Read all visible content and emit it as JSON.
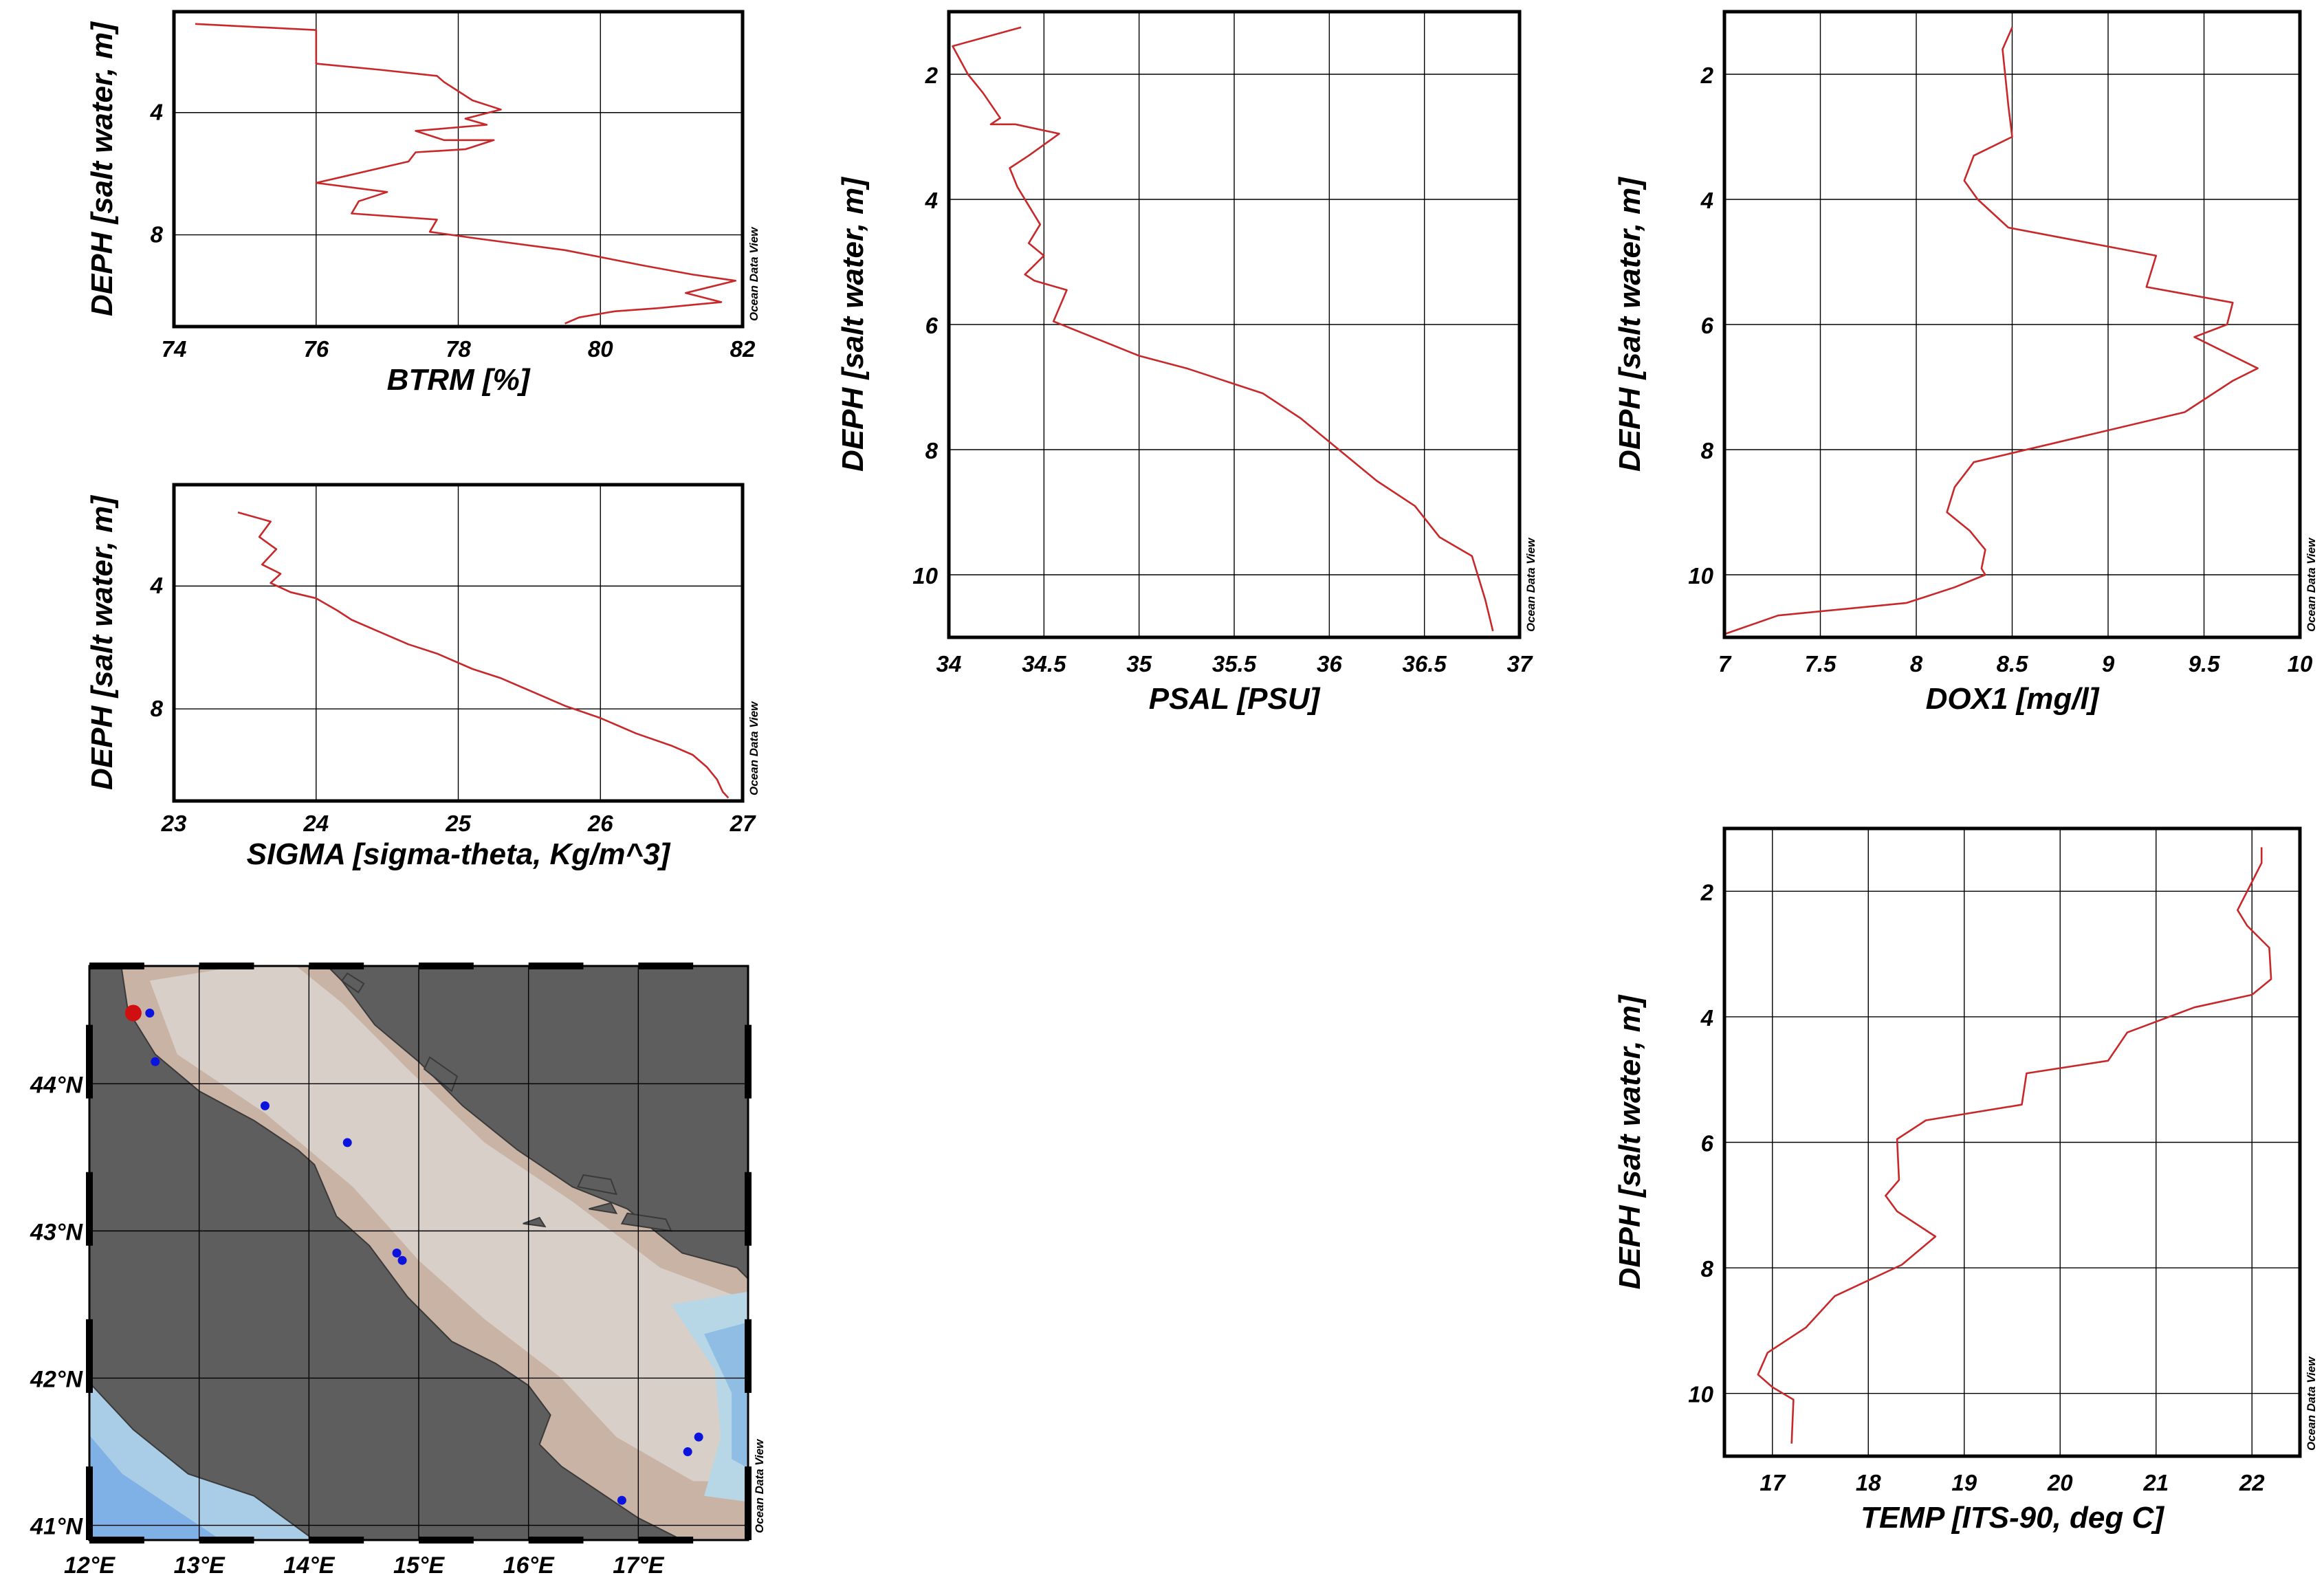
{
  "watermark": "Ocean Data View",
  "colors": {
    "profile": "#c8282a",
    "station": "#0a14dc",
    "selected_station": "#d01010",
    "land": "#5e5e5e",
    "sea_shallow": "#d8cfc8",
    "sea_mid": "#c9b3a4",
    "sea_deep": "#8fbde4"
  },
  "chart_data": [
    {
      "id": "btrm",
      "type": "line",
      "xlabel": "BTRM [%]",
      "ylabel": "DEPH [salt water, m]",
      "xlim": [
        74,
        82
      ],
      "ylim": [
        11,
        0.7
      ],
      "y_inverted": true,
      "xticks": [
        "74",
        "76",
        "78",
        "80",
        "82"
      ],
      "yticks": [
        "4",
        "8"
      ],
      "x": [
        79.5,
        79.7,
        80.2,
        80.8,
        81.7,
        81.2,
        81.9,
        81.3,
        80.6,
        79.5,
        78.2,
        77.6,
        77.7,
        76.5,
        76.6,
        77.0,
        76.0,
        77.3,
        77.4,
        78.1,
        78.5,
        77.8,
        77.4,
        78.4,
        78.1,
        78.6,
        78.2,
        77.8,
        77.7,
        76.9,
        76.0,
        76.0,
        74.3
      ],
      "y": [
        10.9,
        10.7,
        10.5,
        10.4,
        10.2,
        9.9,
        9.5,
        9.3,
        9.0,
        8.5,
        8.1,
        7.9,
        7.5,
        7.3,
        6.9,
        6.6,
        6.3,
        5.6,
        5.3,
        5.2,
        4.9,
        4.9,
        4.6,
        4.4,
        4.2,
        3.9,
        3.6,
        3.0,
        2.8,
        2.6,
        2.4,
        1.3,
        1.1
      ]
    },
    {
      "id": "sigma",
      "type": "line",
      "xlabel": "SIGMA [sigma-theta, Kg/m^3]",
      "ylabel": "DEPH [salt water, m]",
      "xlim": [
        23,
        27
      ],
      "ylim": [
        11,
        0.7
      ],
      "y_inverted": true,
      "xticks": [
        "23",
        "24",
        "25",
        "26",
        "27"
      ],
      "yticks": [
        "4",
        "8"
      ],
      "x": [
        23.45,
        23.68,
        23.6,
        23.72,
        23.62,
        23.75,
        23.68,
        23.82,
        24.0,
        24.15,
        24.25,
        24.45,
        24.65,
        24.85,
        25.1,
        25.3,
        25.55,
        25.75,
        26.0,
        26.25,
        26.5,
        26.65,
        26.75,
        26.82,
        26.86,
        26.9
      ],
      "y": [
        1.6,
        1.9,
        2.4,
        2.8,
        3.3,
        3.6,
        3.9,
        4.2,
        4.4,
        4.8,
        5.1,
        5.5,
        5.9,
        6.2,
        6.7,
        7.0,
        7.5,
        7.9,
        8.3,
        8.8,
        9.2,
        9.5,
        9.9,
        10.3,
        10.7,
        10.9
      ]
    },
    {
      "id": "psal",
      "type": "line",
      "xlabel": "PSAL [PSU]",
      "ylabel": "DEPH [salt water, m]",
      "xlim": [
        34,
        37
      ],
      "ylim": [
        11,
        1
      ],
      "y_inverted": true,
      "xticks": [
        "34",
        "34.5",
        "35",
        "35.5",
        "36",
        "36.5",
        "37"
      ],
      "yticks": [
        "2",
        "4",
        "6",
        "8",
        "10"
      ],
      "x": [
        34.38,
        34.02,
        34.1,
        34.18,
        34.27,
        34.22,
        34.35,
        34.58,
        34.42,
        34.32,
        34.36,
        34.48,
        34.42,
        34.5,
        34.4,
        34.45,
        34.62,
        34.55,
        35.0,
        35.25,
        35.65,
        35.85,
        36.05,
        36.25,
        36.45,
        36.58,
        36.75,
        36.82,
        36.86
      ],
      "y": [
        1.25,
        1.55,
        2.0,
        2.3,
        2.7,
        2.8,
        2.8,
        2.95,
        3.3,
        3.5,
        3.8,
        4.4,
        4.7,
        4.9,
        5.2,
        5.3,
        5.45,
        5.95,
        6.5,
        6.7,
        7.1,
        7.5,
        8.0,
        8.5,
        8.9,
        9.4,
        9.7,
        10.4,
        10.9
      ]
    },
    {
      "id": "dox1",
      "type": "line",
      "xlabel": "DOX1 [mg/l]",
      "ylabel": "DEPH [salt water, m]",
      "xlim": [
        7,
        10
      ],
      "ylim": [
        11,
        1
      ],
      "y_inverted": true,
      "xticks": [
        "7",
        "7.5",
        "8",
        "8.5",
        "9",
        "9.5",
        "10"
      ],
      "yticks": [
        "2",
        "4",
        "6",
        "8",
        "10"
      ],
      "x": [
        8.5,
        8.45,
        8.47,
        8.48,
        8.5,
        8.3,
        8.25,
        8.32,
        8.48,
        9.25,
        9.2,
        9.65,
        9.62,
        9.45,
        9.78,
        9.65,
        9.4,
        8.85,
        8.3,
        8.2,
        8.16,
        8.28,
        8.36,
        8.34,
        8.36,
        8.2,
        7.95,
        7.28,
        7.0
      ],
      "y": [
        1.25,
        1.6,
        2.2,
        2.5,
        3.0,
        3.3,
        3.7,
        4.0,
        4.45,
        4.9,
        5.4,
        5.65,
        6.0,
        6.2,
        6.7,
        6.9,
        7.4,
        7.8,
        8.2,
        8.6,
        9.0,
        9.3,
        9.6,
        9.9,
        10.0,
        10.2,
        10.45,
        10.65,
        10.95
      ]
    },
    {
      "id": "temp",
      "type": "line",
      "xlabel": "TEMP [ITS-90, deg C]",
      "ylabel": "DEPH [salt water, m]",
      "xlim": [
        16.5,
        22.5
      ],
      "ylim": [
        11,
        1
      ],
      "y_inverted": true,
      "xticks": [
        "17",
        "18",
        "19",
        "20",
        "21",
        "22"
      ],
      "yticks": [
        "2",
        "4",
        "6",
        "8",
        "10"
      ],
      "x": [
        22.1,
        22.1,
        22.0,
        21.85,
        21.95,
        22.18,
        22.2,
        22.0,
        21.4,
        20.7,
        20.5,
        19.65,
        19.6,
        18.6,
        18.3,
        18.32,
        18.18,
        18.3,
        18.7,
        18.35,
        17.65,
        17.35,
        16.95,
        16.85,
        17.0,
        17.22,
        17.2
      ],
      "y": [
        1.3,
        1.55,
        1.85,
        2.3,
        2.55,
        2.9,
        3.4,
        3.65,
        3.85,
        4.25,
        4.7,
        4.9,
        5.4,
        5.65,
        5.95,
        6.6,
        6.85,
        7.1,
        7.5,
        7.95,
        8.45,
        8.95,
        9.35,
        9.7,
        9.9,
        10.1,
        10.8
      ]
    },
    {
      "id": "station_map",
      "type": "scatter",
      "xlim": [
        12,
        18
      ],
      "ylim": [
        40.9,
        44.8
      ],
      "xticks": [
        "12°E",
        "13°E",
        "14°E",
        "15°E",
        "16°E",
        "17°E"
      ],
      "yticks": [
        "41°N",
        "42°N",
        "43°N",
        "44°N"
      ],
      "stations": {
        "lon": [
          12.55,
          12.6,
          13.6,
          14.35,
          14.8,
          14.85,
          17.55,
          17.45,
          16.85
        ],
        "lat": [
          44.48,
          44.15,
          43.85,
          43.6,
          42.85,
          42.8,
          41.6,
          41.5,
          41.17
        ]
      },
      "selected_station": {
        "lon": 12.4,
        "lat": 44.48
      }
    }
  ]
}
